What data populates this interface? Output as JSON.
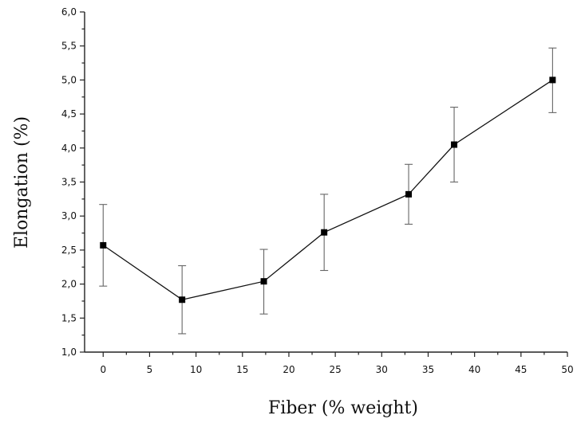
{
  "chart_data": {
    "type": "line",
    "title": "",
    "xlabel": "Fiber (% weight)",
    "ylabel": "Elongation (%)",
    "xlim": [
      -2,
      50
    ],
    "ylim": [
      1.0,
      6.0
    ],
    "x_ticks": [
      0,
      5,
      10,
      15,
      20,
      25,
      30,
      35,
      40,
      45,
      50
    ],
    "x_tick_labels": [
      "0",
      "5",
      "10",
      "15",
      "20",
      "25",
      "30",
      "35",
      "40",
      "45",
      "50"
    ],
    "y_ticks": [
      1.0,
      1.5,
      2.0,
      2.5,
      3.0,
      3.5,
      4.0,
      4.5,
      5.0,
      5.5,
      6.0
    ],
    "y_tick_labels": [
      "1,0",
      "1,5",
      "2,0",
      "2,5",
      "3,0",
      "3,5",
      "4,0",
      "4,5",
      "5,0",
      "5,5",
      "6,0"
    ],
    "grid": false,
    "legend": "none",
    "marker": "square",
    "series": [
      {
        "x": [
          0,
          8.5,
          17.3,
          23.8,
          32.9,
          37.8,
          48.4
        ],
        "y": [
          2.57,
          1.77,
          2.04,
          2.76,
          3.32,
          4.05,
          5.0
        ],
        "err_low": [
          1.97,
          1.27,
          1.56,
          2.2,
          2.88,
          3.5,
          4.52
        ],
        "err_high": [
          3.17,
          2.27,
          2.51,
          3.32,
          3.76,
          4.6,
          5.47
        ]
      }
    ]
  }
}
